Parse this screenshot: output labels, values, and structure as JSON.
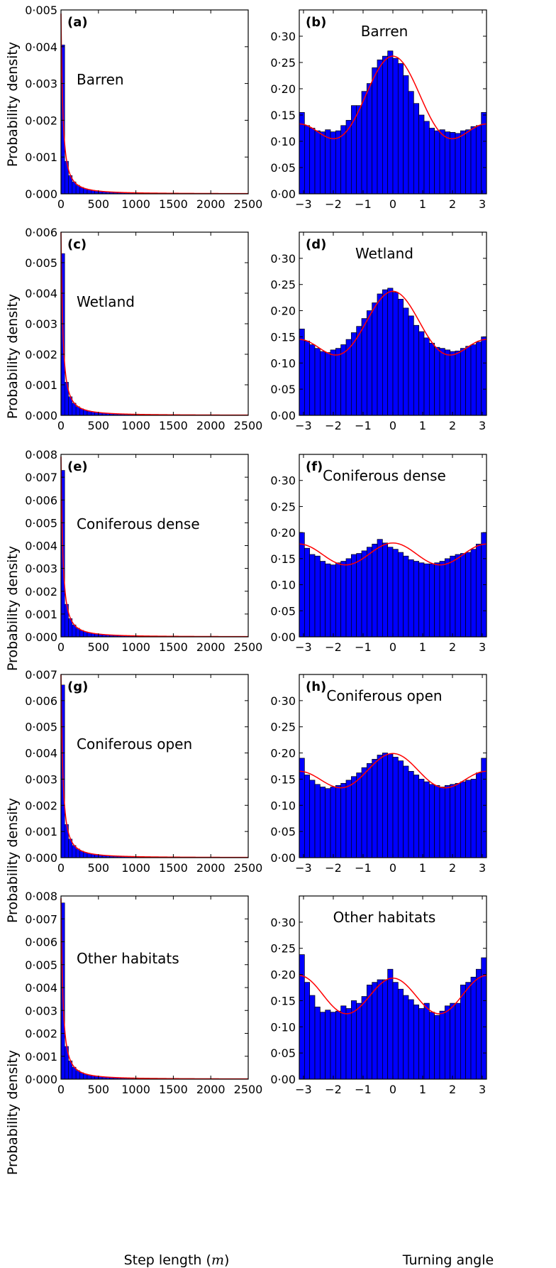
{
  "figure": {
    "ylabel": "Probability density",
    "xlabel_step": "Step length (",
    "xlabel_step_unit": "m",
    "xlabel_step_close": ")",
    "xlabel_angle": "Turning angle"
  },
  "colors": {
    "bar_fill": "#0000ff",
    "bar_edge": "#000000",
    "fit_line": "#ff0000"
  },
  "chart_data": [
    {
      "type": "bar",
      "panel": "(a)",
      "label": "Barren",
      "variable": "step_length",
      "xlim": [
        0,
        2500
      ],
      "ylim": [
        0,
        0.005
      ],
      "xticks": [
        0,
        500,
        1000,
        1500,
        2000,
        2500
      ],
      "xtick_labels": [
        "0",
        "500",
        "1000",
        "1500",
        "2000",
        "2500"
      ],
      "yticks": [
        0,
        0.001,
        0.002,
        0.003,
        0.004,
        0.005
      ],
      "ytick_labels": [
        "0·000",
        "0·001",
        "0·002",
        "0·003",
        "0·004",
        "0·005"
      ],
      "bin_width": 50,
      "bar_peak": 0.00405,
      "curve_peak": 0.0049
    },
    {
      "type": "bar",
      "panel": "(b)",
      "label": "Barren",
      "variable": "turning_angle",
      "xlim": [
        -3.14159,
        3.14159
      ],
      "ylim": [
        0,
        0.35
      ],
      "xticks": [
        -3,
        -2,
        -1,
        0,
        1,
        2,
        3
      ],
      "xtick_labels": [
        "−3",
        "−2",
        "−1",
        "0",
        "1",
        "2",
        "3"
      ],
      "yticks": [
        0,
        0.05,
        0.1,
        0.15,
        0.2,
        0.25,
        0.3
      ],
      "ytick_labels": [
        "0·00",
        "0·05",
        "0·10",
        "0·15",
        "0·20",
        "0·25",
        "0·30"
      ],
      "bins": 36,
      "values": [
        0.155,
        0.13,
        0.125,
        0.12,
        0.118,
        0.122,
        0.118,
        0.12,
        0.13,
        0.14,
        0.168,
        0.168,
        0.195,
        0.21,
        0.24,
        0.255,
        0.262,
        0.272,
        0.258,
        0.248,
        0.225,
        0.195,
        0.172,
        0.15,
        0.138,
        0.125,
        0.12,
        0.122,
        0.118,
        0.117,
        0.115,
        0.12,
        0.122,
        0.128,
        0.13,
        0.155
      ],
      "fit": [
        0.133,
        0.118,
        0.262
      ]
    },
    {
      "type": "bar",
      "panel": "(c)",
      "label": "Wetland",
      "variable": "step_length",
      "xlim": [
        0,
        2500
      ],
      "ylim": [
        0,
        0.006
      ],
      "xticks": [
        0,
        500,
        1000,
        1500,
        2000,
        2500
      ],
      "xtick_labels": [
        "0",
        "500",
        "1000",
        "1500",
        "2000",
        "2500"
      ],
      "yticks": [
        0,
        0.001,
        0.002,
        0.003,
        0.004,
        0.005,
        0.006
      ],
      "ytick_labels": [
        "0·000",
        "0·001",
        "0·002",
        "0·003",
        "0·004",
        "0·005",
        "0·006"
      ],
      "bin_width": 50,
      "bar_peak": 0.0053,
      "curve_peak": 0.006
    },
    {
      "type": "bar",
      "panel": "(d)",
      "label": "Wetland",
      "variable": "turning_angle",
      "xlim": [
        -3.14159,
        3.14159
      ],
      "ylim": [
        0,
        0.35
      ],
      "xticks": [
        -3,
        -2,
        -1,
        0,
        1,
        2,
        3
      ],
      "xtick_labels": [
        "−3",
        "−2",
        "−1",
        "0",
        "1",
        "2",
        "3"
      ],
      "yticks": [
        0,
        0.05,
        0.1,
        0.15,
        0.2,
        0.25,
        0.3
      ],
      "ytick_labels": [
        "0·00",
        "0·05",
        "0·10",
        "0·15",
        "0·20",
        "0·25",
        "0·30"
      ],
      "bins": 36,
      "values": [
        0.165,
        0.142,
        0.135,
        0.128,
        0.122,
        0.12,
        0.125,
        0.128,
        0.135,
        0.145,
        0.158,
        0.17,
        0.185,
        0.2,
        0.215,
        0.232,
        0.24,
        0.243,
        0.235,
        0.222,
        0.205,
        0.19,
        0.172,
        0.16,
        0.148,
        0.138,
        0.13,
        0.128,
        0.125,
        0.122,
        0.123,
        0.128,
        0.132,
        0.135,
        0.14,
        0.15
      ],
      "fit": [
        0.145,
        0.123,
        0.237
      ]
    },
    {
      "type": "bar",
      "panel": "(e)",
      "label": "Coniferous dense",
      "variable": "step_length",
      "xlim": [
        0,
        2500
      ],
      "ylim": [
        0,
        0.008
      ],
      "xticks": [
        0,
        500,
        1000,
        1500,
        2000,
        2500
      ],
      "xtick_labels": [
        "0",
        "500",
        "1000",
        "1500",
        "2000",
        "2500"
      ],
      "yticks": [
        0,
        0.001,
        0.002,
        0.003,
        0.004,
        0.005,
        0.006,
        0.007,
        0.008
      ],
      "ytick_labels": [
        "0·000",
        "0·001",
        "0·002",
        "0·003",
        "0·004",
        "0·005",
        "0·006",
        "0·007",
        "0·008"
      ],
      "bin_width": 50,
      "bar_peak": 0.0073,
      "curve_peak": 0.0079
    },
    {
      "type": "bar",
      "panel": "(f)",
      "label": "Coniferous dense",
      "variable": "turning_angle",
      "xlim": [
        -3.14159,
        3.14159
      ],
      "ylim": [
        0,
        0.35
      ],
      "xticks": [
        -3,
        -2,
        -1,
        0,
        1,
        2,
        3
      ],
      "xtick_labels": [
        "−3",
        "−2",
        "−1",
        "0",
        "1",
        "2",
        "3"
      ],
      "yticks": [
        0,
        0.05,
        0.1,
        0.15,
        0.2,
        0.25,
        0.3
      ],
      "ytick_labels": [
        "0·00",
        "0·05",
        "0·10",
        "0·15",
        "0·20",
        "0·25",
        "0·30"
      ],
      "bins": 36,
      "values": [
        0.2,
        0.17,
        0.158,
        0.155,
        0.145,
        0.14,
        0.138,
        0.142,
        0.145,
        0.15,
        0.158,
        0.16,
        0.165,
        0.172,
        0.178,
        0.187,
        0.18,
        0.172,
        0.168,
        0.162,
        0.155,
        0.148,
        0.145,
        0.142,
        0.14,
        0.14,
        0.142,
        0.145,
        0.15,
        0.155,
        0.158,
        0.16,
        0.162,
        0.168,
        0.178,
        0.2
      ],
      "fit": [
        0.178,
        0.138,
        0.18
      ]
    },
    {
      "type": "bar",
      "panel": "(g)",
      "label": "Coniferous open",
      "variable": "step_length",
      "xlim": [
        0,
        2500
      ],
      "ylim": [
        0,
        0.007
      ],
      "xticks": [
        0,
        500,
        1000,
        1500,
        2000,
        2500
      ],
      "xtick_labels": [
        "0",
        "500",
        "1000",
        "1500",
        "2000",
        "2500"
      ],
      "yticks": [
        0,
        0.001,
        0.002,
        0.003,
        0.004,
        0.005,
        0.006,
        0.007
      ],
      "ytick_labels": [
        "0·000",
        "0·001",
        "0·002",
        "0·003",
        "0·004",
        "0·005",
        "0·006",
        "0·007"
      ],
      "bin_width": 50,
      "bar_peak": 0.0066,
      "curve_peak": 0.007
    },
    {
      "type": "bar",
      "panel": "(h)",
      "label": "Coniferous open",
      "variable": "turning_angle",
      "xlim": [
        -3.14159,
        3.14159
      ],
      "ylim": [
        0,
        0.35
      ],
      "xticks": [
        -3,
        -2,
        -1,
        0,
        1,
        2,
        3
      ],
      "xtick_labels": [
        "−3",
        "−2",
        "−1",
        "0",
        "1",
        "2",
        "3"
      ],
      "yticks": [
        0,
        0.05,
        0.1,
        0.15,
        0.2,
        0.25,
        0.3
      ],
      "ytick_labels": [
        "0·00",
        "0·05",
        "0·10",
        "0·15",
        "0·20",
        "0·25",
        "0·30"
      ],
      "bins": 36,
      "values": [
        0.19,
        0.158,
        0.148,
        0.14,
        0.135,
        0.132,
        0.135,
        0.138,
        0.142,
        0.148,
        0.155,
        0.162,
        0.172,
        0.18,
        0.188,
        0.196,
        0.2,
        0.198,
        0.192,
        0.185,
        0.175,
        0.165,
        0.158,
        0.15,
        0.145,
        0.14,
        0.138,
        0.135,
        0.138,
        0.14,
        0.142,
        0.145,
        0.148,
        0.15,
        0.162,
        0.19
      ],
      "fit": [
        0.165,
        0.135,
        0.199
      ]
    },
    {
      "type": "bar",
      "panel": "",
      "label": "Other habitats",
      "variable": "step_length",
      "xlim": [
        0,
        2500
      ],
      "ylim": [
        0,
        0.008
      ],
      "xticks": [
        0,
        500,
        1000,
        1500,
        2000,
        2500
      ],
      "xtick_labels": [
        "0",
        "500",
        "1000",
        "1500",
        "2000",
        "2500"
      ],
      "yticks": [
        0,
        0.001,
        0.002,
        0.003,
        0.004,
        0.005,
        0.006,
        0.007,
        0.008
      ],
      "ytick_labels": [
        "0·000",
        "0·001",
        "0·002",
        "0·003",
        "0·004",
        "0·005",
        "0·006",
        "0·007",
        "0·008"
      ],
      "bin_width": 50,
      "bar_peak": 0.0077,
      "curve_peak": 0.0079
    },
    {
      "type": "bar",
      "panel": "",
      "label": "Other habitats",
      "variable": "turning_angle",
      "xlim": [
        -3.14159,
        3.14159
      ],
      "ylim": [
        0,
        0.35
      ],
      "xticks": [
        -3,
        -2,
        -1,
        0,
        1,
        2,
        3
      ],
      "xtick_labels": [
        "−3",
        "−2",
        "−1",
        "0",
        "1",
        "2",
        "3"
      ],
      "yticks": [
        0,
        0.05,
        0.1,
        0.15,
        0.2,
        0.25,
        0.3
      ],
      "ytick_labels": [
        "0·00",
        "0·05",
        "0·10",
        "0·15",
        "0·20",
        "0·25",
        "0·30"
      ],
      "bins": 36,
      "values": [
        0.238,
        0.185,
        0.16,
        0.138,
        0.128,
        0.132,
        0.128,
        0.13,
        0.14,
        0.135,
        0.15,
        0.145,
        0.158,
        0.18,
        0.185,
        0.19,
        0.19,
        0.21,
        0.185,
        0.172,
        0.16,
        0.152,
        0.142,
        0.135,
        0.145,
        0.128,
        0.122,
        0.13,
        0.14,
        0.145,
        0.145,
        0.18,
        0.185,
        0.195,
        0.21,
        0.232
      ],
      "fit": [
        0.198,
        0.125,
        0.193
      ]
    }
  ]
}
